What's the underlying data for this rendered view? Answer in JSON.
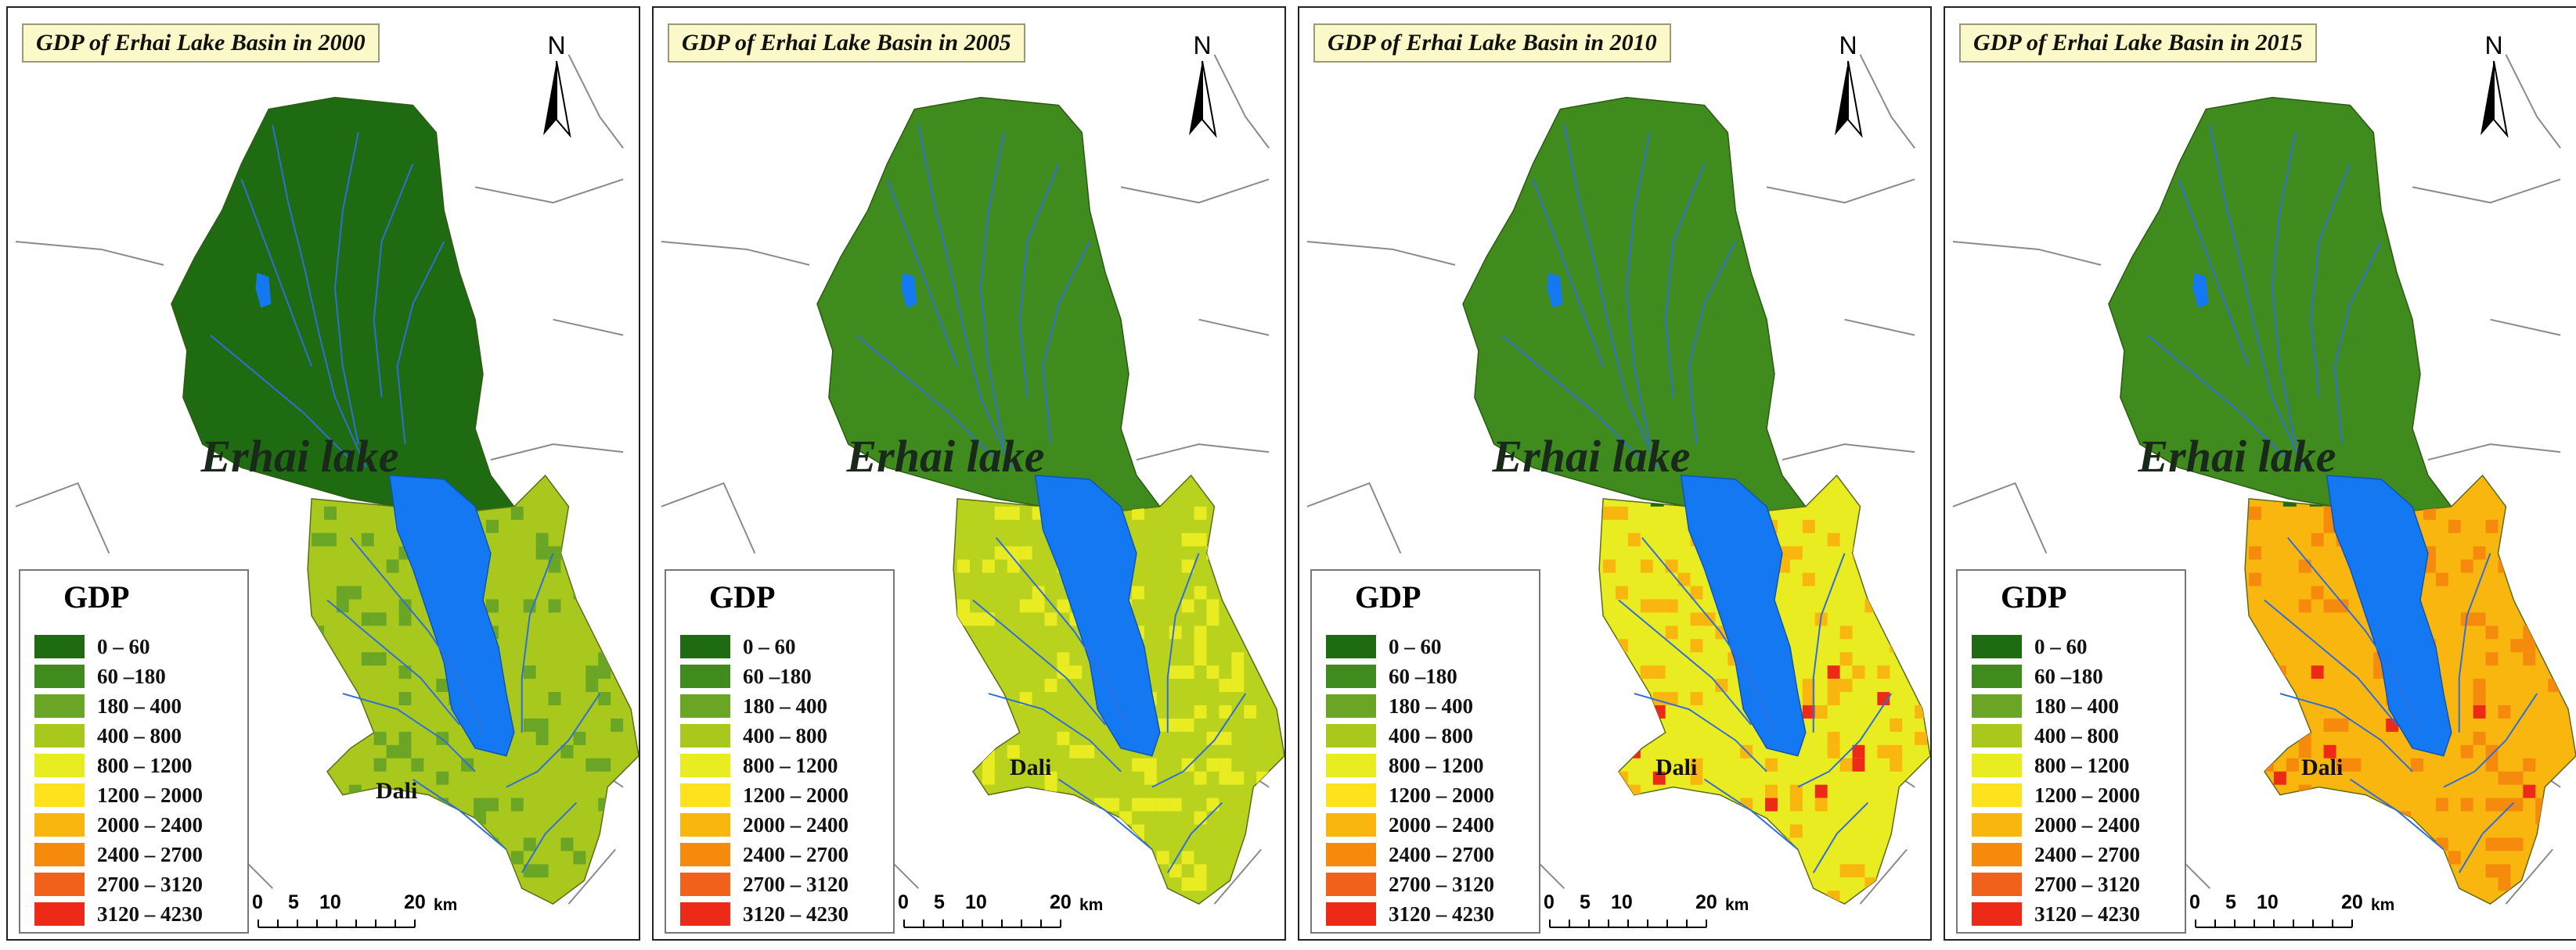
{
  "colors": {
    "c1": "#1f6b12",
    "c2": "#3f8b1e",
    "c3": "#6aa525",
    "c4": "#a8c81e",
    "c5": "#e9ec20",
    "c6": "#fde21d",
    "c7": "#f8b60f",
    "c8": "#f58a0d",
    "c9": "#f2611b",
    "c10": "#ed2a17",
    "lake": "#1478f2",
    "river": "#2f6fd8",
    "title_bg": "#fbf8c9"
  },
  "legend": {
    "title": "GDP",
    "classes": [
      {
        "label": "0 – 60",
        "color": "#1f6b12"
      },
      {
        "label": "60 –180",
        "color": "#3f8b1e"
      },
      {
        "label": "180 – 400",
        "color": "#6aa525"
      },
      {
        "label": "400 – 800",
        "color": "#a8c81e"
      },
      {
        "label": "800 – 1200",
        "color": "#e9ec20"
      },
      {
        "label": "1200 – 2000",
        "color": "#fde21d"
      },
      {
        "label": "2000 – 2400",
        "color": "#f8b60f"
      },
      {
        "label": "2400 – 2700",
        "color": "#f58a0d"
      },
      {
        "label": "2700 – 3120",
        "color": "#f2611b"
      },
      {
        "label": "3120 – 4230",
        "color": "#ed2a17"
      }
    ]
  },
  "north_label": "N",
  "lake_label": "Erhai lake",
  "city_label": "Dali",
  "scale": {
    "ticks": [
      "0",
      "5",
      "10",
      "20"
    ],
    "unit": "km"
  },
  "maps": [
    {
      "title": "GDP of Erhai Lake Basin in 2000",
      "north_color": "#1f6b12",
      "south_color": "#a8c81e",
      "south_hot": "#6aa525",
      "hot_core": "#6aa525"
    },
    {
      "title": "GDP of Erhai Lake Basin in 2005",
      "north_color": "#3f8b1e",
      "south_color": "#b8d21e",
      "south_hot": "#e9ec20",
      "hot_core": "#fde21d"
    },
    {
      "title": "GDP of Erhai Lake Basin in 2010",
      "north_color": "#3f8b1e",
      "south_color": "#e9ec20",
      "south_hot": "#f8b60f",
      "hot_core": "#ed2a17"
    },
    {
      "title": "GDP of Erhai Lake Basin in 2015",
      "north_color": "#3f8b1e",
      "south_color": "#f8b60f",
      "south_hot": "#f58a0d",
      "hot_core": "#ed2a17"
    }
  ]
}
